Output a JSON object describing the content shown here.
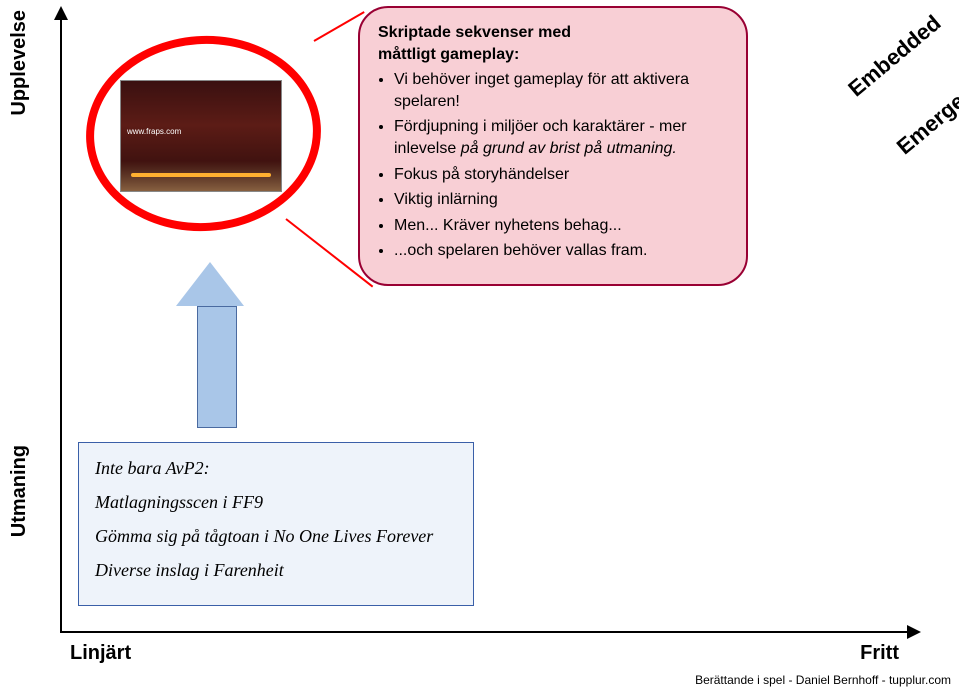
{
  "axes": {
    "y_label": "Upplevelse",
    "y_label_2": "Utmaning",
    "x_left": "Linjärt",
    "x_right": "Fritt",
    "axis_color": "#000000"
  },
  "diagonal_labels": {
    "top": "Embedded",
    "bottom": "Emergent"
  },
  "screenshot": {
    "watermark": "www.fraps.com",
    "ellipse_color": "#ff0000"
  },
  "pink_callout": {
    "bg": "#f8cfd5",
    "border": "#990033",
    "heading_line1": "Skriptade sekvenser med",
    "heading_line2": "måttligt gameplay:",
    "bullets": [
      "Vi behöver inget gameplay för att aktivera spelaren!",
      "Fördjupning i miljöer och karaktärer - mer inlevelse på grund av brist på utmaning.",
      "Fokus på storyhändelser",
      "Viktig inlärning",
      "Men... Kräver nyhetens behag...",
      "...och spelaren behöver vallas fram."
    ]
  },
  "blue_callout": {
    "bg": "#eef3fa",
    "border": "#3a5fa8",
    "lines": [
      "Inte bara AvP2:",
      "Matlagningsscen i FF9",
      "Gömma sig på tågtoan i No One Lives Forever",
      "Diverse inslag i Farenheit"
    ]
  },
  "arrow": {
    "fill": "#a9c6e8",
    "border": "#4a6aa0"
  },
  "footer": "Berättande i spel - Daniel Bernhoff - tupplur.com"
}
